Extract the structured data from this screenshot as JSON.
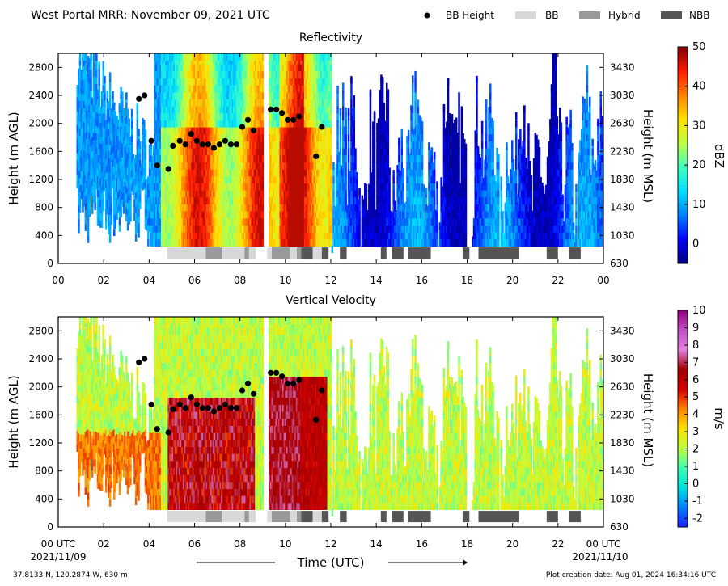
{
  "header": {
    "title": "West Portal MRR:  November 09, 2021 UTC"
  },
  "legend": {
    "placement": "top-right",
    "items": [
      {
        "label": "BB Height",
        "marker": "dot",
        "color": "#000000"
      },
      {
        "label": "BB",
        "marker": "rect",
        "color": "#d8d8d8"
      },
      {
        "label": "Hybrid",
        "marker": "rect",
        "color": "#999999"
      },
      {
        "label": "NBB",
        "marker": "rect",
        "color": "#555555"
      }
    ]
  },
  "footer": {
    "location": "37.8133 N, 120.2874 W, 630 m",
    "created": "Plot creation date: Aug 01, 2024 16:34:16 UTC",
    "date_start": "2021/11/09",
    "date_end": "2021/11/10",
    "time_label": "Time (UTC)"
  },
  "chart_data": [
    {
      "type": "heatmap",
      "title": "Reflectivity",
      "ylabel": "Height (m AGL)",
      "y2label": "Height (m MSL)",
      "xlim": [
        0,
        24
      ],
      "ylim": [
        0,
        3000
      ],
      "x_ticks": [
        "00",
        "02",
        "04",
        "06",
        "08",
        "10",
        "12",
        "14",
        "16",
        "18",
        "20",
        "22",
        "00"
      ],
      "y_ticks": [
        0,
        400,
        800,
        1200,
        1600,
        2000,
        2400,
        2800
      ],
      "y2_ticks": [
        "630",
        "1030",
        "1430",
        "1830",
        "2230",
        "2630",
        "3030",
        "3430"
      ],
      "colorbar": {
        "label": "dBZ",
        "range": [
          -5,
          50
        ],
        "ticks": [
          "0",
          "10",
          "20",
          "30",
          "40",
          "50"
        ],
        "stops": [
          "#00007f",
          "#0000ff",
          "#0080ff",
          "#00e0ff",
          "#40ffbf",
          "#bfff40",
          "#ffe000",
          "#ff8000",
          "#ff1a00",
          "#7f0000"
        ]
      }
    },
    {
      "type": "heatmap",
      "title": "Vertical Velocity",
      "ylabel": "Height (m AGL)",
      "y2label": "Height (m MSL)",
      "xlim": [
        0,
        24
      ],
      "ylim": [
        0,
        3000
      ],
      "x_ticks": [
        "00 UTC",
        "02",
        "04",
        "06",
        "08",
        "10",
        "12",
        "14",
        "16",
        "18",
        "20",
        "22",
        "00 UTC"
      ],
      "y_ticks": [
        0,
        400,
        800,
        1200,
        1600,
        2000,
        2400,
        2800
      ],
      "y2_ticks": [
        "630",
        "1030",
        "1430",
        "1830",
        "2230",
        "2630",
        "3030",
        "3430"
      ],
      "colorbar": {
        "label": "m/s",
        "range": [
          -2.5,
          10
        ],
        "ticks": [
          "-2",
          "-1",
          "0",
          "1",
          "2",
          "3",
          "4",
          "5",
          "6",
          "7",
          "8",
          "9",
          "10"
        ],
        "stops": [
          "#2020ff",
          "#0080ff",
          "#00e0e0",
          "#40ffb0",
          "#bfff40",
          "#ffe000",
          "#ff8000",
          "#d00000",
          "#a00000",
          "#e080e0",
          "#c050c0",
          "#900080"
        ]
      }
    }
  ],
  "bb_heights": [
    {
      "x": 3.55,
      "y": 2350
    },
    {
      "x": 3.8,
      "y": 2400
    },
    {
      "x": 4.1,
      "y": 1750
    },
    {
      "x": 4.35,
      "y": 1400
    },
    {
      "x": 4.85,
      "y": 1350
    },
    {
      "x": 5.05,
      "y": 1680
    },
    {
      "x": 5.35,
      "y": 1750
    },
    {
      "x": 5.6,
      "y": 1700
    },
    {
      "x": 5.85,
      "y": 1850
    },
    {
      "x": 6.1,
      "y": 1750
    },
    {
      "x": 6.35,
      "y": 1700
    },
    {
      "x": 6.6,
      "y": 1700
    },
    {
      "x": 6.85,
      "y": 1650
    },
    {
      "x": 7.1,
      "y": 1700
    },
    {
      "x": 7.35,
      "y": 1750
    },
    {
      "x": 7.6,
      "y": 1700
    },
    {
      "x": 7.85,
      "y": 1700
    },
    {
      "x": 8.1,
      "y": 1950
    },
    {
      "x": 8.35,
      "y": 2050
    },
    {
      "x": 8.6,
      "y": 1900
    },
    {
      "x": 9.35,
      "y": 2200
    },
    {
      "x": 9.6,
      "y": 2200
    },
    {
      "x": 9.85,
      "y": 2150
    },
    {
      "x": 10.1,
      "y": 2050
    },
    {
      "x": 10.35,
      "y": 2050
    },
    {
      "x": 10.6,
      "y": 2100
    },
    {
      "x": 11.35,
      "y": 1530
    },
    {
      "x": 11.6,
      "y": 1950
    }
  ],
  "bb_types": [
    {
      "start": 4.8,
      "end": 6.5,
      "type": "BB"
    },
    {
      "start": 6.5,
      "end": 7.2,
      "type": "Hybrid"
    },
    {
      "start": 7.2,
      "end": 8.2,
      "type": "BB"
    },
    {
      "start": 8.2,
      "end": 8.4,
      "type": "Hybrid"
    },
    {
      "start": 8.4,
      "end": 8.7,
      "type": "BB"
    },
    {
      "start": 9.2,
      "end": 9.4,
      "type": "BB"
    },
    {
      "start": 9.4,
      "end": 10.2,
      "type": "Hybrid"
    },
    {
      "start": 10.2,
      "end": 10.5,
      "type": "BB"
    },
    {
      "start": 10.5,
      "end": 10.7,
      "type": "Hybrid"
    },
    {
      "start": 10.7,
      "end": 11.2,
      "type": "NBB"
    },
    {
      "start": 11.2,
      "end": 11.6,
      "type": "BB"
    },
    {
      "start": 11.6,
      "end": 11.9,
      "type": "NBB"
    },
    {
      "start": 12.4,
      "end": 12.7,
      "type": "NBB"
    },
    {
      "start": 14.2,
      "end": 14.45,
      "type": "NBB"
    },
    {
      "start": 14.7,
      "end": 15.2,
      "type": "NBB"
    },
    {
      "start": 15.4,
      "end": 16.4,
      "type": "NBB"
    },
    {
      "start": 17.8,
      "end": 18.1,
      "type": "NBB"
    },
    {
      "start": 18.5,
      "end": 20.3,
      "type": "NBB"
    },
    {
      "start": 21.5,
      "end": 22.0,
      "type": "NBB"
    },
    {
      "start": 22.5,
      "end": 23.0,
      "type": "NBB"
    }
  ]
}
